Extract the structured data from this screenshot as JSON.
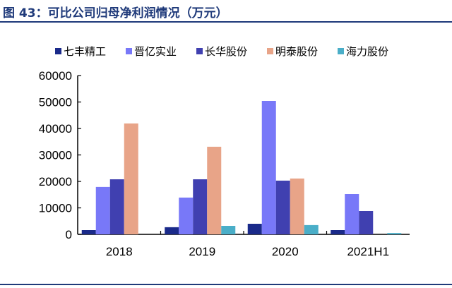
{
  "title": "图 43：可比公司归母净利润情况（万元）",
  "chart_data": {
    "type": "bar",
    "title": "",
    "xlabel": "",
    "ylabel": "",
    "categories": [
      "2018",
      "2019",
      "2020",
      "2021H1"
    ],
    "ylim": [
      0,
      60000
    ],
    "yticks": [
      "0",
      "10000",
      "20000",
      "30000",
      "40000",
      "50000",
      "60000"
    ],
    "grid": false,
    "legend": "top",
    "series": [
      {
        "name": "七丰精工",
        "color": "#1a2a8a",
        "values": [
          1600,
          2700,
          4000,
          1600
        ]
      },
      {
        "name": "晋亿实业",
        "color": "#7878f8",
        "values": [
          17900,
          13900,
          50400,
          15200
        ]
      },
      {
        "name": "长华股份",
        "color": "#4040b0",
        "values": [
          20800,
          20800,
          20300,
          8800
        ]
      },
      {
        "name": "明泰股份",
        "color": "#e8a488",
        "values": [
          41900,
          33100,
          21100,
          null
        ]
      },
      {
        "name": "海力股份",
        "color": "#4aaec8",
        "values": [
          null,
          3200,
          3500,
          500
        ]
      }
    ]
  }
}
